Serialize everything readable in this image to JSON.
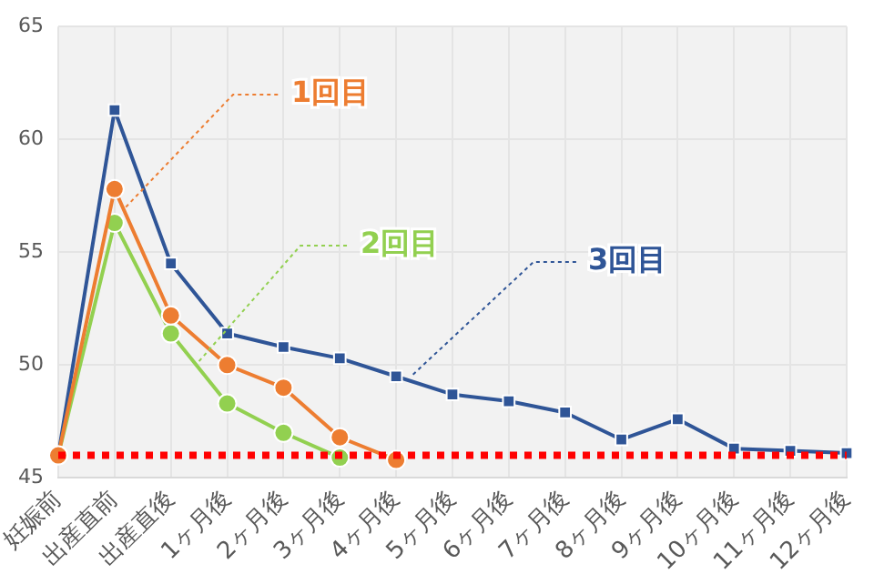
{
  "chart_data": {
    "type": "line",
    "categories": [
      "妊娠前",
      "出産直前",
      "出産直後",
      "1ヶ月後",
      "2ヶ月後",
      "3ヶ月後",
      "4ヶ月後",
      "5ヶ月後",
      "6ヶ月後",
      "7ヶ月後",
      "8ヶ月後",
      "9ヶ月後",
      "10ヶ月後",
      "11ヶ月後",
      "12ヶ月後"
    ],
    "series": [
      {
        "name": "1回目",
        "color": "#ed7d31",
        "marker": "circle",
        "values": [
          46,
          57.8,
          52.2,
          50,
          49,
          46.8,
          45.8,
          null,
          null,
          null,
          null,
          null,
          null,
          null,
          null
        ]
      },
      {
        "name": "2回目",
        "color": "#92d050",
        "marker": "circle",
        "values": [
          46,
          56.3,
          51.4,
          48.3,
          47,
          45.9,
          null,
          null,
          null,
          null,
          null,
          null,
          null,
          null,
          null
        ]
      },
      {
        "name": "3回目",
        "color": "#2f5597",
        "marker": "square",
        "values": [
          46,
          61.3,
          54.5,
          51.4,
          50.8,
          50.3,
          49.5,
          48.7,
          48.4,
          47.9,
          46.7,
          47.6,
          46.3,
          46.2,
          46.1
        ]
      }
    ],
    "ylim": [
      45,
      65
    ],
    "yticks": [
      45,
      50,
      55,
      60,
      65
    ],
    "grid": true,
    "legend": false,
    "line_style": "solid",
    "ref_lines": [
      {
        "axis": "y",
        "value": 46,
        "color": "#ff0000",
        "line_style": "dotted"
      }
    ]
  }
}
